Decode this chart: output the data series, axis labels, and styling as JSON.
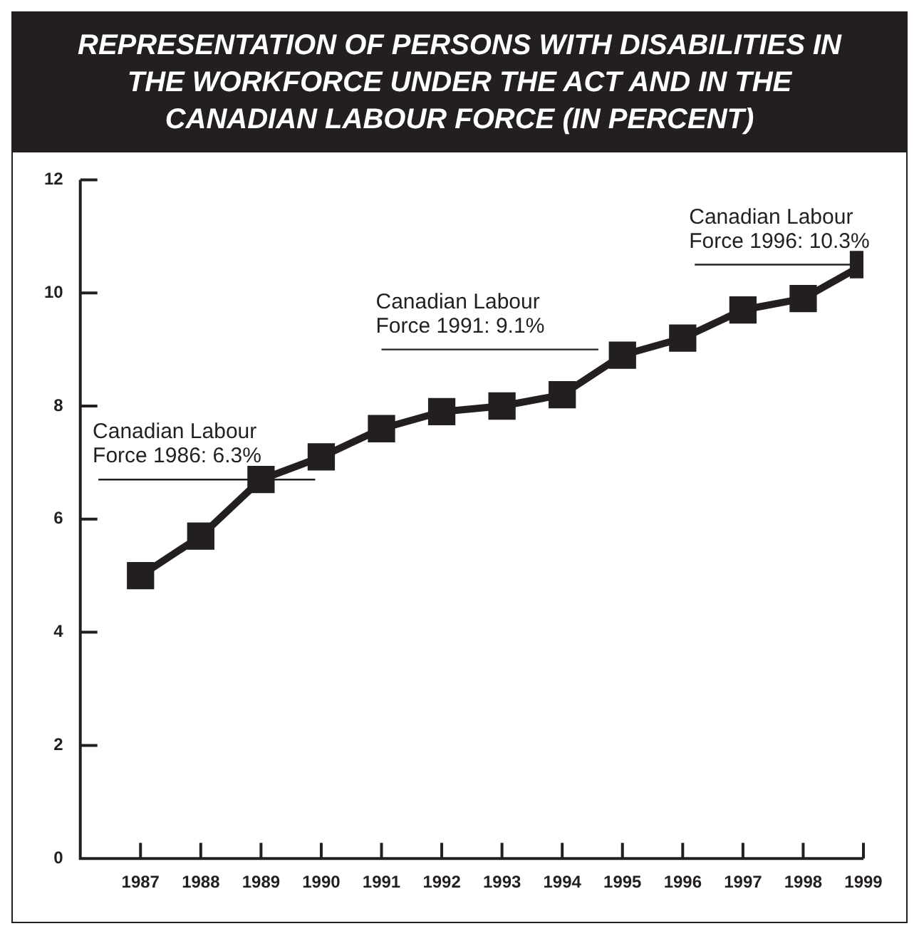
{
  "chart_data": {
    "type": "line",
    "title": "REPRESENTATION OF PERSONS WITH DISABILITIES IN THE WORKFORCE UNDER THE ACT AND IN THE CANADIAN LABOUR FORCE (IN PERCENT)",
    "x": [
      1987,
      1988,
      1989,
      1990,
      1991,
      1992,
      1993,
      1994,
      1995,
      1996,
      1997,
      1998,
      1999
    ],
    "series": [
      {
        "color": "#231f20",
        "values": [
          5.0,
          5.7,
          6.7,
          7.1,
          7.6,
          7.9,
          8.0,
          8.2,
          8.9,
          9.2,
          9.7,
          9.9,
          10.5
        ],
        "marker": "square",
        "line_style": "solid"
      },
      {
        "color": "#231f20",
        "x": [
          1986.3,
          1989.9
        ],
        "values": [
          6.7,
          6.7
        ],
        "marker": "none",
        "line_style": "solid"
      },
      {
        "color": "#231f20",
        "x": [
          1991.0,
          1994.6
        ],
        "values": [
          9.0,
          9.0
        ],
        "marker": "none",
        "line_style": "solid"
      },
      {
        "color": "#231f20",
        "x": [
          1996.2,
          1999.0
        ],
        "values": [
          10.5,
          10.5
        ],
        "marker": "none",
        "line_style": "solid"
      }
    ],
    "annotations": [
      {
        "text": "Canadian Labour\nForce 1986: 6.3%",
        "x": 1986.3,
        "y": 6.7
      },
      {
        "text": "Canadian Labour\nForce 1991: 9.1%",
        "x": 1991.0,
        "y": 9.0
      },
      {
        "text": "Canadian Labour\nForce 1996: 10.3%",
        "x": 1996.2,
        "y": 10.5
      }
    ],
    "xlim": [
      1986,
      1999
    ],
    "xticks": [
      1987,
      1988,
      1989,
      1990,
      1991,
      1992,
      1993,
      1994,
      1995,
      1996,
      1997,
      1998,
      1999
    ],
    "ylim": [
      0,
      12
    ],
    "yticks": [
      0,
      2,
      4,
      6,
      8,
      10,
      12
    ],
    "grid": false,
    "legend": false
  }
}
